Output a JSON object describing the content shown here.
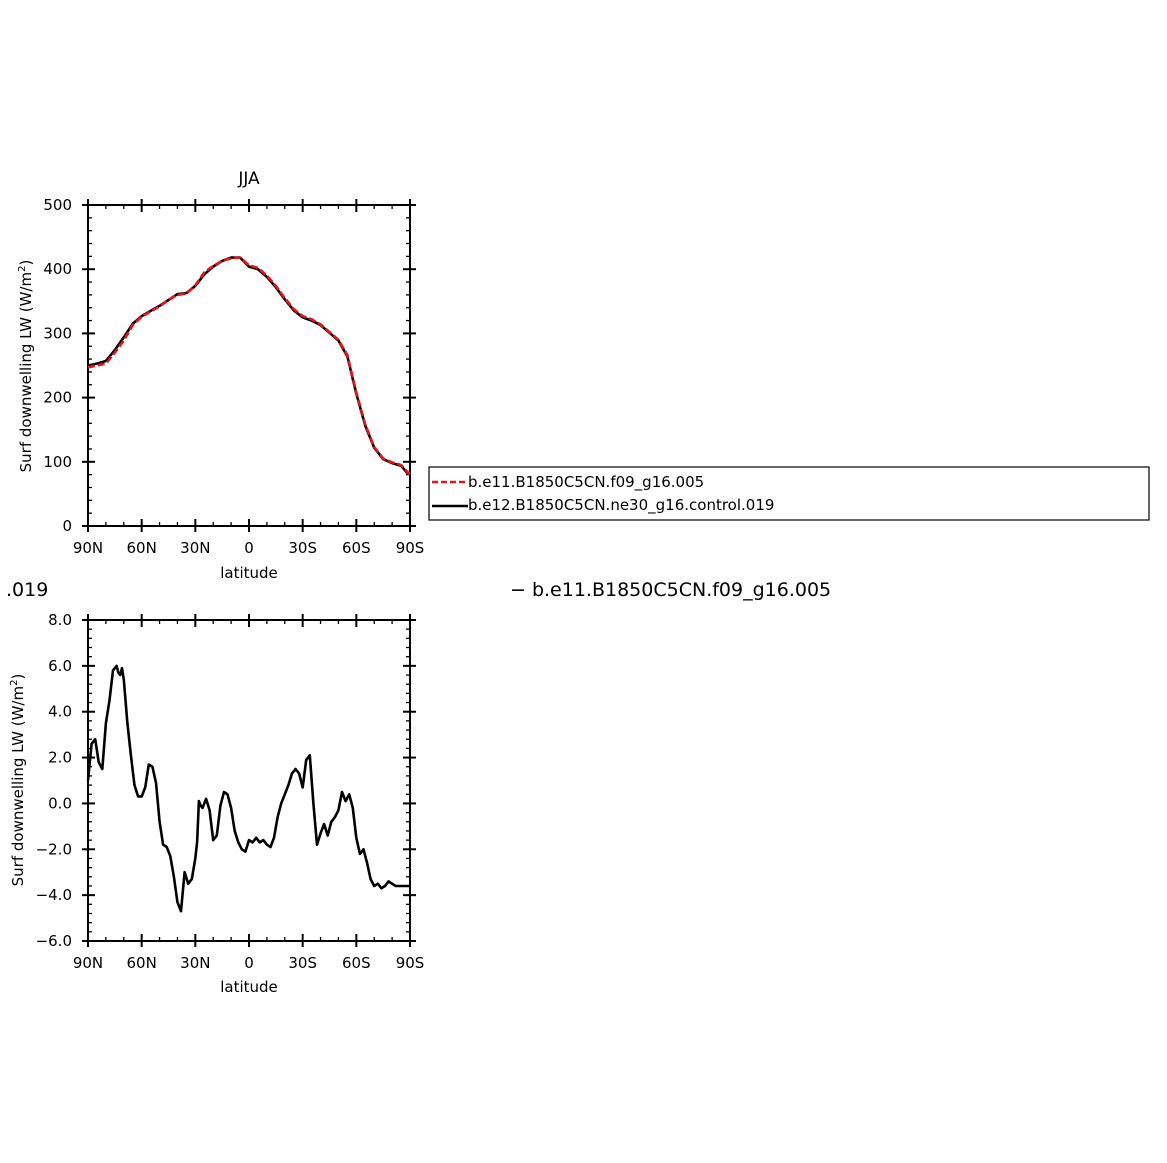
{
  "chart_data": [
    {
      "type": "line",
      "title": "JJA",
      "xlabel": "latitude",
      "ylabel": "Surf downwelling LW (W/m²)",
      "ylabel_parts": {
        "main": "Surf downwelling LW (W/m",
        "sup": "2",
        "end": ")"
      },
      "xlim": [
        90,
        -90
      ],
      "ylim": [
        0,
        500
      ],
      "xticks": [
        90,
        60,
        30,
        0,
        -30,
        -60,
        -90
      ],
      "xtick_labels": [
        "90N",
        "60N",
        "30N",
        "0",
        "30S",
        "60S",
        "90S"
      ],
      "yticks": [
        0,
        100,
        200,
        300,
        400,
        500
      ],
      "ytick_labels": [
        "0",
        "100",
        "200",
        "300",
        "400",
        "500"
      ],
      "legend": "right of plot, boxed",
      "x": [
        90,
        85,
        80,
        75,
        70,
        65,
        60,
        55,
        50,
        45,
        40,
        35,
        30,
        25,
        20,
        15,
        10,
        5,
        0,
        -5,
        -10,
        -15,
        -20,
        -25,
        -30,
        -35,
        -40,
        -45,
        -50,
        -55,
        -60,
        -65,
        -70,
        -75,
        -80,
        -85,
        -88,
        -90
      ],
      "series": [
        {
          "name": "b.e11.B1850C5CN.f09_g16.005",
          "color": "#e8141c",
          "dash": "dashed",
          "values": [
            247,
            250,
            253,
            270,
            289,
            313,
            326,
            334,
            342,
            352,
            360,
            362,
            375,
            395,
            405,
            413,
            417,
            418,
            406,
            402,
            390,
            374,
            355,
            338,
            327,
            322,
            314,
            302,
            290,
            266,
            208,
            158,
            123,
            105,
            99,
            95,
            86,
            80
          ]
        },
        {
          "name": "b.e12.B1850C5CN.ne30_g16.control.019",
          "color": "#000000",
          "dash": "solid",
          "values": [
            250,
            253,
            257,
            274,
            294,
            315,
            327,
            335,
            343,
            352,
            361,
            363,
            374,
            392,
            404,
            413,
            418,
            418,
            404,
            400,
            388,
            372,
            353,
            336,
            325,
            320,
            313,
            301,
            289,
            264,
            206,
            156,
            122,
            104,
            98,
            94,
            84,
            80
          ]
        }
      ]
    },
    {
      "type": "line",
      "xlabel": "latitude",
      "ylabel": "Surf downwelling LW (W/m²)",
      "ylabel_parts": {
        "main": "Surf downwelling LW (W/m",
        "sup": "2",
        "end": ")"
      },
      "xlim": [
        90,
        -90
      ],
      "ylim": [
        -6,
        8
      ],
      "xticks": [
        90,
        60,
        30,
        0,
        -30,
        -60,
        -90
      ],
      "xtick_labels": [
        "90N",
        "60N",
        "30N",
        "0",
        "30S",
        "60S",
        "90S"
      ],
      "yticks": [
        -6,
        -4,
        -2,
        0,
        2,
        4,
        6,
        8
      ],
      "ytick_labels": [
        "−6.0",
        "−4.0",
        "−2.0",
        "0.0",
        "2.0",
        "4.0",
        "6.0",
        "8.0"
      ],
      "title_fragments": {
        "left": ".019",
        "right": "− b.e11.B1850C5CN.f09_g16.005"
      },
      "x": [
        90,
        88,
        86,
        84,
        82,
        80,
        78,
        76,
        74,
        73,
        72,
        71,
        70,
        68,
        66,
        64,
        62,
        60,
        58,
        56,
        54,
        52,
        50,
        48,
        46,
        44,
        42,
        40,
        38,
        36,
        34,
        32,
        30,
        29,
        28,
        27,
        26,
        24,
        22,
        20,
        18,
        16,
        14,
        12,
        10,
        8,
        6,
        4,
        2,
        0,
        -2,
        -4,
        -6,
        -8,
        -10,
        -12,
        -14,
        -16,
        -18,
        -20,
        -22,
        -24,
        -26,
        -28,
        -30,
        -32,
        -34,
        -36,
        -38,
        -40,
        -42,
        -44,
        -46,
        -48,
        -50,
        -52,
        -54,
        -56,
        -58,
        -60,
        -62,
        -64,
        -66,
        -68,
        -70,
        -72,
        -74,
        -76,
        -78,
        -80,
        -82,
        -84,
        -86,
        -88,
        -90
      ],
      "series": [
        {
          "name": "",
          "color": "#000000",
          "dash": "solid",
          "values": [
            1.0,
            2.6,
            2.8,
            1.8,
            1.5,
            3.5,
            4.5,
            5.8,
            6.0,
            5.7,
            5.6,
            5.9,
            5.4,
            3.5,
            2.1,
            0.8,
            0.3,
            0.3,
            0.7,
            1.7,
            1.6,
            0.9,
            -0.8,
            -1.8,
            -1.9,
            -2.3,
            -3.2,
            -4.3,
            -4.7,
            -3.0,
            -3.5,
            -3.3,
            -2.4,
            -1.7,
            0.1,
            -0.1,
            -0.2,
            0.2,
            -0.3,
            -1.6,
            -1.4,
            -0.1,
            0.5,
            0.4,
            -0.2,
            -1.2,
            -1.7,
            -2.0,
            -2.1,
            -1.6,
            -1.7,
            -1.5,
            -1.7,
            -1.6,
            -1.8,
            -1.9,
            -1.5,
            -0.6,
            0.0,
            0.4,
            0.8,
            1.3,
            1.5,
            1.3,
            0.7,
            1.9,
            2.1,
            0.0,
            -1.8,
            -1.3,
            -0.9,
            -1.4,
            -0.8,
            -0.6,
            -0.3,
            0.5,
            0.1,
            0.4,
            -0.2,
            -1.5,
            -2.2,
            -2.0,
            -2.6,
            -3.3,
            -3.6,
            -3.5,
            -3.7,
            -3.6,
            -3.4,
            -3.5,
            -3.6,
            -3.6,
            -3.6,
            -3.6,
            -3.6
          ]
        }
      ]
    }
  ]
}
